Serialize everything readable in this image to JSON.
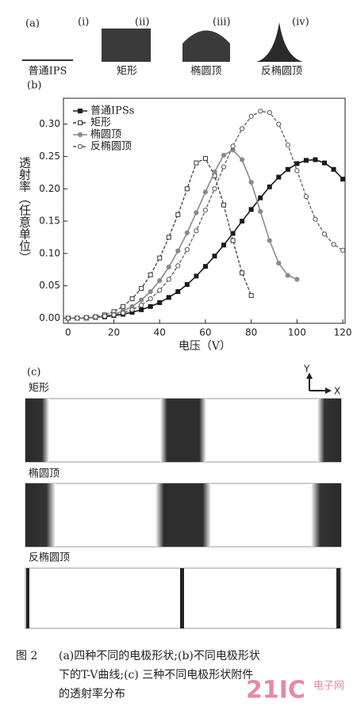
{
  "panel_a": {
    "label": "(a)",
    "shapes": [
      {
        "index": "(i)",
        "name": "普通IPS"
      },
      {
        "index": "(ii)",
        "name": "矩形"
      },
      {
        "index": "(iii)",
        "name": "椭圆顶"
      },
      {
        "index": "(iv)",
        "name": "反椭圆顶"
      }
    ]
  },
  "panel_b": {
    "label": "(b)"
  },
  "chart_data": {
    "type": "line",
    "x_label": "电压（V）",
    "y_label": "透射率（任意单位）",
    "x": [
      0,
      4,
      8,
      12,
      16,
      20,
      24,
      28,
      32,
      36,
      40,
      44,
      48,
      52,
      56,
      60,
      64,
      68,
      72,
      76,
      80,
      84,
      88,
      92,
      96,
      100,
      104,
      108,
      112,
      116,
      120
    ],
    "series": [
      {
        "name": "普通IPSs",
        "color": "#1a1a1a",
        "marker": "filled-square",
        "line_style": "solid",
        "values": [
          0,
          0,
          0,
          0.001,
          0.002,
          0.004,
          0.006,
          0.009,
          0.013,
          0.018,
          0.024,
          0.032,
          0.041,
          0.052,
          0.065,
          0.08,
          0.096,
          0.113,
          0.131,
          0.15,
          0.168,
          0.186,
          0.203,
          0.218,
          0.23,
          0.239,
          0.244,
          0.245,
          0.24,
          0.23,
          0.215
        ]
      },
      {
        "name": "矩形",
        "color": "#333333",
        "marker": "open-square",
        "line_style": "dashed",
        "values": [
          0,
          0,
          0.001,
          0.002,
          0.005,
          0.01,
          0.018,
          0.03,
          0.046,
          0.067,
          0.093,
          0.125,
          0.16,
          0.2,
          0.24,
          0.247,
          0.22,
          0.175,
          0.12,
          0.07,
          0.035,
          null,
          null,
          null,
          null,
          null,
          null,
          null,
          null,
          null,
          null
        ]
      },
      {
        "name": "椭圆顶",
        "color": "#8a8a8a",
        "marker": "filled-circle",
        "line_style": "solid",
        "values": [
          0,
          0,
          0,
          0.001,
          0.003,
          0.006,
          0.011,
          0.018,
          0.028,
          0.041,
          0.058,
          0.079,
          0.104,
          0.132,
          0.163,
          0.195,
          0.226,
          0.252,
          0.26,
          0.245,
          0.21,
          0.165,
          0.12,
          0.085,
          0.066,
          0.06,
          null,
          null,
          null,
          null,
          null
        ]
      },
      {
        "name": "反椭圆顶",
        "color": "#555555",
        "marker": "open-circle",
        "line_style": "dashed",
        "values": [
          0,
          0,
          0.001,
          0.002,
          0.003,
          0.005,
          0.008,
          0.013,
          0.02,
          0.03,
          0.043,
          0.06,
          0.081,
          0.106,
          0.135,
          0.167,
          0.2,
          0.234,
          0.266,
          0.293,
          0.312,
          0.32,
          0.318,
          0.3,
          0.268,
          0.228,
          0.188,
          0.153,
          0.13,
          0.114,
          0.105
        ]
      }
    ],
    "xlim": [
      -2,
      121
    ],
    "xticks": [
      0,
      20,
      40,
      60,
      80,
      100,
      120
    ],
    "ylim": [
      -0.008,
      0.34
    ],
    "yticks": [
      {
        "value": 0,
        "label": "0.00"
      },
      0.05,
      {
        "value": 0.1,
        "label": "0.10"
      },
      0.15,
      {
        "value": 0.2,
        "label": "0.20"
      },
      0.25,
      {
        "value": 0.3,
        "label": "0.30"
      }
    ]
  },
  "panel_c": {
    "label": "(c)",
    "axis_y": "Y",
    "axis_x": "X",
    "rows": [
      "矩形",
      "椭圆顶",
      "反椭圆顶"
    ]
  },
  "caption": {
    "figure": "图 2",
    "lines": [
      "(a)四种不同的电极形状;(b)不同电极形状",
      "下的T-V曲线;(c) 三种不同电极形状附件",
      "的透射率分布"
    ]
  },
  "watermark": {
    "logo": "21IC",
    "site": "电子网"
  }
}
